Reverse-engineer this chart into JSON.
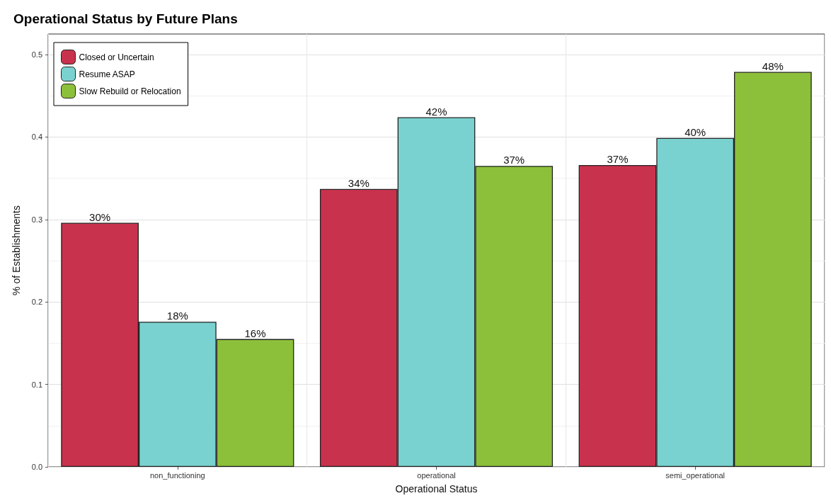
{
  "chart_data": {
    "type": "bar",
    "title": "Operational Status by Future Plans",
    "xlabel": "Operational Status",
    "ylabel": "% of Establishments",
    "categories": [
      "non_functioning",
      "operational",
      "semi_operational"
    ],
    "series": [
      {
        "name": "Closed or Uncertain",
        "color": "#c8324d",
        "values": [
          0.296,
          0.337,
          0.366
        ],
        "value_labels": [
          "30%",
          "34%",
          "37%"
        ]
      },
      {
        "name": "Resume ASAP",
        "color": "#7ad2d0",
        "values": [
          0.176,
          0.424,
          0.399
        ],
        "value_labels": [
          "18%",
          "42%",
          "40%"
        ]
      },
      {
        "name": "Slow Rebuild or Relocation",
        "color": "#8dc03a",
        "values": [
          0.155,
          0.365,
          0.479
        ],
        "value_labels": [
          "16%",
          "37%",
          "48%"
        ]
      }
    ],
    "ylim": [
      0,
      0.525
    ],
    "yticks": [
      {
        "value": 0,
        "label": "0.0"
      },
      {
        "value": 0.1,
        "label": "0.1"
      },
      {
        "value": 0.2,
        "label": "0.2"
      },
      {
        "value": 0.3,
        "label": "0.3"
      },
      {
        "value": 0.4,
        "label": "0.4"
      },
      {
        "value": 0.5,
        "label": "0.5"
      }
    ],
    "grid": true,
    "legend": "top left"
  }
}
